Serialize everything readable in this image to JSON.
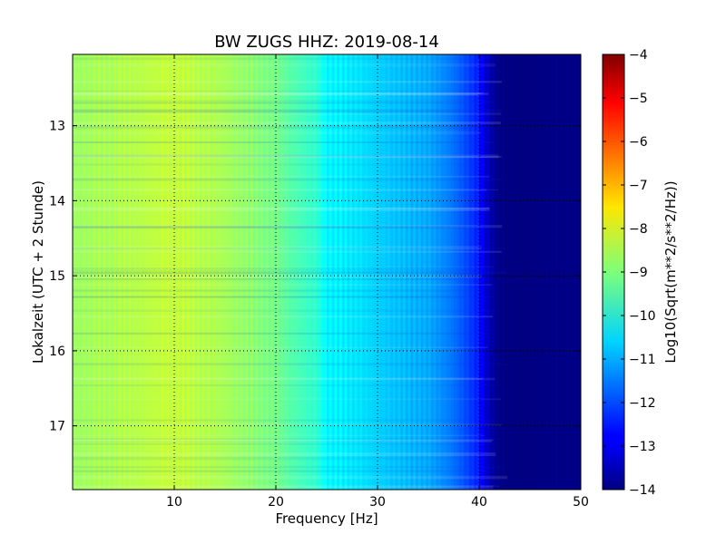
{
  "chart_data": {
    "type": "heatmap",
    "title": "BW ZUGS HHZ: 2019-08-14",
    "xlabel": "Frequency [Hz]",
    "ylabel": "Lokalzeit (UTC + 2 Stunde)",
    "xlim": [
      0,
      50
    ],
    "ylim": [
      12.05,
      17.85
    ],
    "y_inverted": true,
    "x_ticks": [
      10,
      20,
      30,
      40,
      50
    ],
    "y_ticks": [
      13,
      14,
      15,
      16,
      17
    ],
    "grid": true,
    "colormap": "jet",
    "colorbar": {
      "label": "Log10(Sqrt(m**2/s**2/Hz))",
      "vmin": -14,
      "vmax": -4,
      "ticks": [
        -4,
        -5,
        -6,
        -7,
        -8,
        -9,
        -10,
        -11,
        -12,
        -13,
        -14
      ]
    },
    "spectrum_profile": {
      "frequency": [
        0,
        5,
        10,
        15,
        20,
        22,
        24,
        25,
        28,
        30,
        35,
        37,
        38,
        40,
        41,
        42,
        50
      ],
      "level": [
        -8.7,
        -8.5,
        -8.3,
        -8.6,
        -9.1,
        -9.5,
        -9.8,
        -10.3,
        -10.5,
        -10.7,
        -11.1,
        -11.5,
        -11.8,
        -12.5,
        -13.5,
        -14,
        -14
      ]
    }
  }
}
